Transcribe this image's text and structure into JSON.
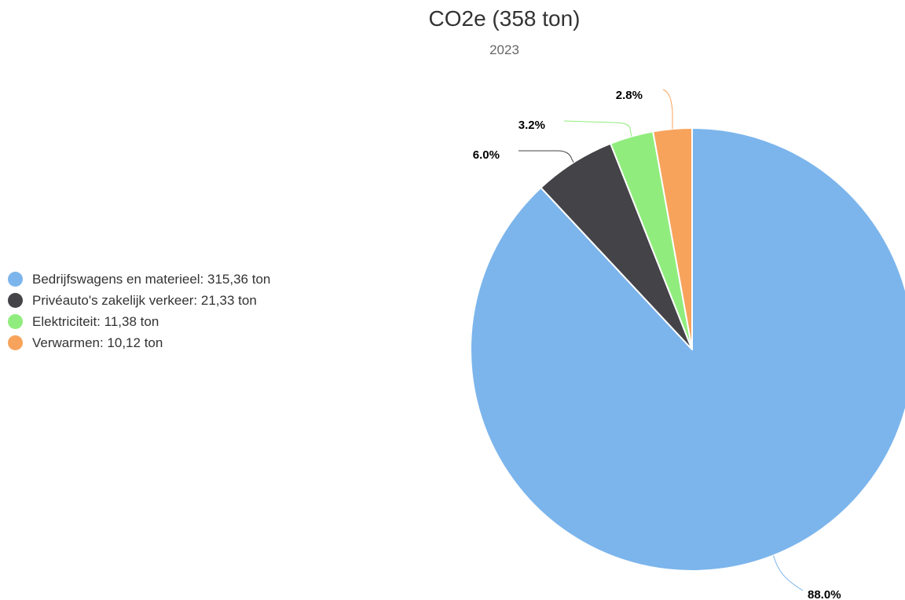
{
  "chart_data": {
    "type": "pie",
    "title": "CO2e (358 ton)",
    "subtitle": "2023",
    "unit": "ton",
    "series": [
      {
        "data": [
          {
            "name": "Bedrijfswagens en materieel",
            "value": 315.36,
            "label": "Bedrijfswagens en materieel: 315,36 ton",
            "percent_label": "88.0%",
            "color": "#7cb5ec"
          },
          {
            "name": "Privéauto's zakelijk verkeer",
            "value": 21.33,
            "label": "Privéauto's zakelijk verkeer: 21,33 ton",
            "percent_label": "6.0%",
            "color": "#434348"
          },
          {
            "name": "Elektriciteit",
            "value": 11.38,
            "label": "Elektriciteit: 11,38 ton",
            "percent_label": "3.2%",
            "color": "#90ed7d"
          },
          {
            "name": "Verwarmen",
            "value": 10.12,
            "label": "Verwarmen: 10,12 ton",
            "percent_label": "2.8%",
            "color": "#f7a35c"
          }
        ]
      }
    ],
    "legend_placement": "left",
    "data_labels": "outside-with-connectors"
  }
}
